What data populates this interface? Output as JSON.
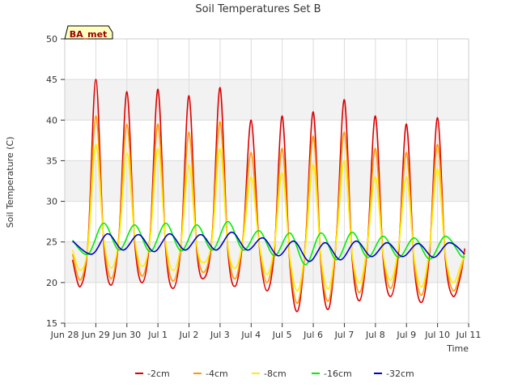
{
  "chart_data": {
    "type": "line",
    "title": "Soil Temperatures Set B",
    "xlabel": "Time",
    "ylabel": "Soil Temperature (C)",
    "ylim": [
      15,
      50
    ],
    "xlim": [
      "Jun 28",
      "Jul 11"
    ],
    "y_ticks": [
      15,
      20,
      25,
      30,
      35,
      40,
      45,
      50
    ],
    "x_ticks": [
      "Jun 28",
      "Jun 29",
      "Jun 30",
      "Jul 1",
      "Jul 2",
      "Jul 3",
      "Jul 4",
      "Jul 5",
      "Jul 6",
      "Jul 7",
      "Jul 8",
      "Jul 9",
      "Jul 10",
      "Jul 11"
    ],
    "grid": true,
    "shaded_bands": [
      [
        20,
        25
      ],
      [
        30,
        35
      ],
      [
        40,
        45
      ]
    ],
    "legend_position": "bottom",
    "station_label": "BA_met",
    "series": [
      {
        "name": "-2cm",
        "color": "#dd0000",
        "x": [
          "Jun 28 06:00",
          "Jun 28 12:00",
          "Jun 28 18:00",
          "Jun 29 00:00",
          "Jun 29 06:00",
          "Jun 29 12:00",
          "Jun 29 18:00",
          "Jun 30 00:00",
          "Jun 30 06:00",
          "Jun 30 12:00",
          "Jun 30 18:00",
          "Jul 1 00:00",
          "Jul 1 06:00",
          "Jul 1 12:00",
          "Jul 1 18:00",
          "Jul 2 00:00",
          "Jul 2 06:00",
          "Jul 2 12:00",
          "Jul 2 18:00",
          "Jul 3 00:00",
          "Jul 3 06:00",
          "Jul 3 12:00",
          "Jul 3 18:00",
          "Jul 4 00:00",
          "Jul 4 06:00",
          "Jul 4 12:00",
          "Jul 4 18:00",
          "Jul 5 00:00",
          "Jul 5 06:00",
          "Jul 5 12:00",
          "Jul 5 18:00",
          "Jul 6 00:00",
          "Jul 6 06:00",
          "Jul 6 12:00",
          "Jul 6 18:00",
          "Jul 7 00:00",
          "Jul 7 06:00",
          "Jul 7 12:00",
          "Jul 7 18:00",
          "Jul 8 00:00",
          "Jul 8 06:00",
          "Jul 8 12:00",
          "Jul 8 18:00",
          "Jul 9 00:00",
          "Jul 9 06:00",
          "Jul 9 12:00",
          "Jul 9 18:00",
          "Jul 10 00:00",
          "Jul 10 06:00",
          "Jul 10 12:00",
          "Jul 10 18:00",
          "Jul 10 21:00"
        ],
        "y": [
          22.8,
          19.5,
          25,
          45,
          25,
          19.7,
          26,
          43.5,
          25,
          20,
          26,
          43.8,
          24,
          19.3,
          25,
          43,
          24,
          20.6,
          26,
          44,
          24,
          19.6,
          26,
          40,
          25,
          19,
          24,
          40.5,
          22,
          16.5,
          25,
          41,
          22,
          16.8,
          26,
          42.5,
          23,
          17.8,
          25,
          40.5,
          23,
          18.3,
          24,
          39.5,
          22,
          17.6,
          24,
          40.3,
          23,
          18.3,
          21,
          24.2
        ]
      },
      {
        "name": "-4cm",
        "color": "#ff9900",
        "x": [
          "Jun 28 06:00",
          "Jun 28 12:00",
          "Jun 28 18:00",
          "Jun 29 00:00",
          "Jun 29 06:00",
          "Jun 29 12:00",
          "Jun 29 18:00",
          "Jun 30 00:00",
          "Jun 30 06:00",
          "Jun 30 12:00",
          "Jun 30 18:00",
          "Jul 1 00:00",
          "Jul 1 06:00",
          "Jul 1 12:00",
          "Jul 1 18:00",
          "Jul 2 00:00",
          "Jul 2 06:00",
          "Jul 2 12:00",
          "Jul 2 18:00",
          "Jul 3 00:00",
          "Jul 3 06:00",
          "Jul 3 12:00",
          "Jul 3 18:00",
          "Jul 4 00:00",
          "Jul 4 06:00",
          "Jul 4 12:00",
          "Jul 4 18:00",
          "Jul 5 00:00",
          "Jul 5 06:00",
          "Jul 5 12:00",
          "Jul 5 18:00",
          "Jul 6 00:00",
          "Jul 6 06:00",
          "Jul 6 12:00",
          "Jul 6 18:00",
          "Jul 7 00:00",
          "Jul 7 06:00",
          "Jul 7 12:00",
          "Jul 7 18:00",
          "Jul 8 00:00",
          "Jul 8 06:00",
          "Jul 8 12:00",
          "Jul 8 18:00",
          "Jul 9 00:00",
          "Jul 9 06:00",
          "Jul 9 12:00",
          "Jul 9 18:00",
          "Jul 10 00:00",
          "Jul 10 06:00",
          "Jul 10 12:00",
          "Jul 10 18:00",
          "Jul 10 21:00"
        ],
        "y": [
          23.5,
          20.3,
          25,
          40.5,
          25.5,
          20.5,
          26,
          39.5,
          25.5,
          20.8,
          26,
          39.5,
          24.5,
          20.2,
          25,
          38.5,
          24.5,
          21.3,
          26,
          39.8,
          24.5,
          20.5,
          26,
          36,
          25,
          20,
          24.5,
          36.5,
          22.5,
          17.5,
          25,
          38,
          22.5,
          17.8,
          26,
          38.5,
          23.5,
          18.8,
          25,
          36.5,
          23.5,
          19.3,
          24.5,
          36,
          22.5,
          18.5,
          24.5,
          37,
          23.5,
          19,
          21.5,
          23.8
        ]
      },
      {
        "name": "-8cm",
        "color": "#ffee00",
        "x": [
          "Jun 28 06:00",
          "Jun 28 12:00",
          "Jun 28 18:00",
          "Jun 29 00:00",
          "Jun 29 06:00",
          "Jun 29 12:00",
          "Jun 29 18:00",
          "Jun 30 00:00",
          "Jun 30 06:00",
          "Jun 30 12:00",
          "Jun 30 18:00",
          "Jul 1 00:00",
          "Jul 1 06:00",
          "Jul 1 12:00",
          "Jul 1 18:00",
          "Jul 2 00:00",
          "Jul 2 06:00",
          "Jul 2 12:00",
          "Jul 2 18:00",
          "Jul 3 00:00",
          "Jul 3 06:00",
          "Jul 3 12:00",
          "Jul 3 18:00",
          "Jul 4 00:00",
          "Jul 4 06:00",
          "Jul 4 12:00",
          "Jul 4 18:00",
          "Jul 5 00:00",
          "Jul 5 06:00",
          "Jul 5 12:00",
          "Jul 5 18:00",
          "Jul 6 00:00",
          "Jul 6 06:00",
          "Jul 6 12:00",
          "Jul 6 18:00",
          "Jul 7 00:00",
          "Jul 7 06:00",
          "Jul 7 12:00",
          "Jul 7 18:00",
          "Jul 8 00:00",
          "Jul 8 06:00",
          "Jul 8 12:00",
          "Jul 8 18:00",
          "Jul 9 00:00",
          "Jul 9 06:00",
          "Jul 9 12:00",
          "Jul 9 18:00",
          "Jul 10 00:00",
          "Jul 10 06:00",
          "Jul 10 12:00",
          "Jul 10 18:00",
          "Jul 10 21:00"
        ],
        "y": [
          24,
          21.5,
          24.5,
          37,
          25.5,
          21.8,
          25.5,
          36,
          25.5,
          22,
          25.5,
          36.5,
          25,
          21.5,
          25,
          34.5,
          24.5,
          22.5,
          25.5,
          36.5,
          24.5,
          21.8,
          25.5,
          33,
          25,
          21,
          24.5,
          33.5,
          23,
          19,
          24.5,
          34.5,
          23,
          19.3,
          25.5,
          35,
          23.5,
          20,
          25,
          33,
          23.5,
          20.3,
          24.5,
          33,
          23,
          19.5,
          24.5,
          34,
          23.5,
          20,
          22.2,
          23.5
        ]
      },
      {
        "name": "-16cm",
        "color": "#00ee00",
        "x": [
          "Jun 28 06:00",
          "Jun 28 18:00",
          "Jun 29 06:00",
          "Jun 29 18:00",
          "Jun 30 06:00",
          "Jun 30 18:00",
          "Jul 1 06:00",
          "Jul 1 18:00",
          "Jul 2 06:00",
          "Jul 2 18:00",
          "Jul 3 06:00",
          "Jul 3 18:00",
          "Jul 4 06:00",
          "Jul 4 18:00",
          "Jul 5 06:00",
          "Jul 5 18:00",
          "Jul 6 06:00",
          "Jul 6 18:00",
          "Jul 7 06:00",
          "Jul 7 18:00",
          "Jul 8 06:00",
          "Jul 8 18:00",
          "Jul 9 06:00",
          "Jul 9 18:00",
          "Jul 10 06:00",
          "Jul 10 18:00",
          "Jul 10 21:00"
        ],
        "y": [
          25.2,
          23.5,
          27.3,
          24,
          27.1,
          23.8,
          27.3,
          23.9,
          27.1,
          24,
          27.5,
          24,
          26.4,
          23.3,
          26.1,
          22.2,
          26.1,
          22.8,
          26.2,
          23.1,
          25.7,
          23.1,
          25.5,
          22.9,
          25.7,
          23.3,
          23.2
        ]
      },
      {
        "name": "-32cm",
        "color": "#0000cc",
        "x": [
          "Jun 28 06:00",
          "Jun 28 21:00",
          "Jun 29 09:00",
          "Jun 29 21:00",
          "Jun 30 09:00",
          "Jun 30 21:00",
          "Jul 1 09:00",
          "Jul 1 21:00",
          "Jul 2 09:00",
          "Jul 2 21:00",
          "Jul 3 09:00",
          "Jul 3 21:00",
          "Jul 4 09:00",
          "Jul 4 21:00",
          "Jul 5 09:00",
          "Jul 5 21:00",
          "Jul 6 09:00",
          "Jul 6 21:00",
          "Jul 7 09:00",
          "Jul 7 21:00",
          "Jul 8 09:00",
          "Jul 8 21:00",
          "Jul 9 09:00",
          "Jul 9 21:00",
          "Jul 10 09:00",
          "Jul 10 21:00"
        ],
        "y": [
          25.1,
          23.5,
          26,
          24,
          25.9,
          23.8,
          26,
          24,
          25.9,
          24,
          26.2,
          24,
          25.5,
          23.3,
          25.1,
          22.6,
          24.9,
          22.8,
          25.1,
          23.2,
          24.9,
          23.2,
          24.8,
          23.1,
          24.9,
          23.5
        ]
      }
    ]
  }
}
